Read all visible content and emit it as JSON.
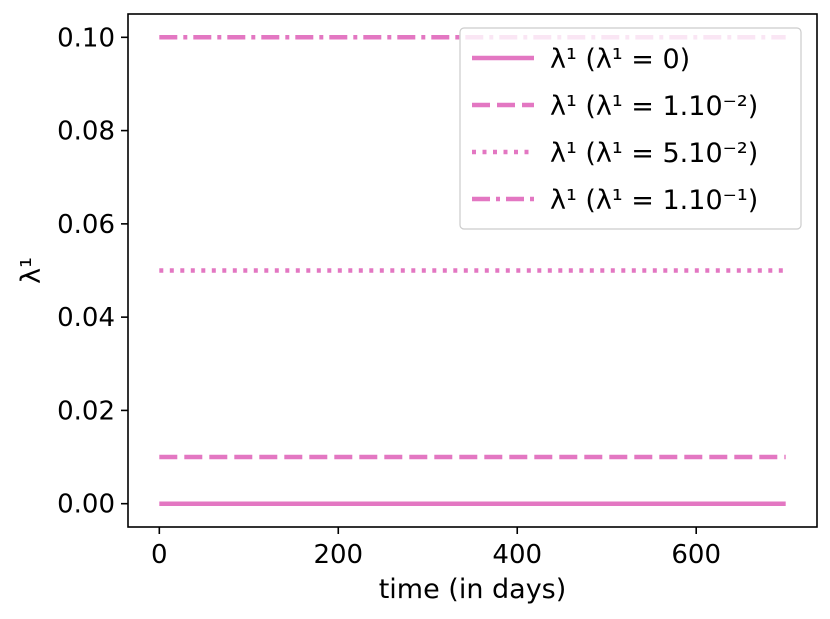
{
  "chart_data": {
    "type": "line",
    "title": "",
    "xlabel": "time (in days)",
    "ylabel": "λ¹",
    "xlim": [
      -35,
      735
    ],
    "ylim": [
      -0.005,
      0.105
    ],
    "x_ticks": [
      0,
      200,
      400,
      600
    ],
    "y_ticks": [
      0.0,
      0.02,
      0.04,
      0.06,
      0.08,
      0.1
    ],
    "x_tick_labels": [
      "0",
      "200",
      "400",
      "600"
    ],
    "y_tick_labels": [
      "0.00",
      "0.02",
      "0.04",
      "0.06",
      "0.08",
      "0.10"
    ],
    "grid": false,
    "legend_position": "top-right",
    "series": [
      {
        "name": "λ¹ (λ¹ = 0)",
        "style": "solid",
        "color": "#e377c2",
        "x": [
          0,
          700
        ],
        "y": [
          0.0,
          0.0
        ]
      },
      {
        "name": "λ¹ (λ¹ = 1.10⁻²)",
        "style": "dashed",
        "color": "#e377c2",
        "x": [
          0,
          700
        ],
        "y": [
          0.01,
          0.01
        ]
      },
      {
        "name": "λ¹ (λ¹ = 5.10⁻²)",
        "style": "dotted",
        "color": "#e377c2",
        "x": [
          0,
          700
        ],
        "y": [
          0.05,
          0.05
        ]
      },
      {
        "name": "λ¹ (λ¹ = 1.10⁻¹)",
        "style": "dashdot",
        "color": "#e377c2",
        "x": [
          0,
          700
        ],
        "y": [
          0.1,
          0.1
        ]
      }
    ]
  }
}
